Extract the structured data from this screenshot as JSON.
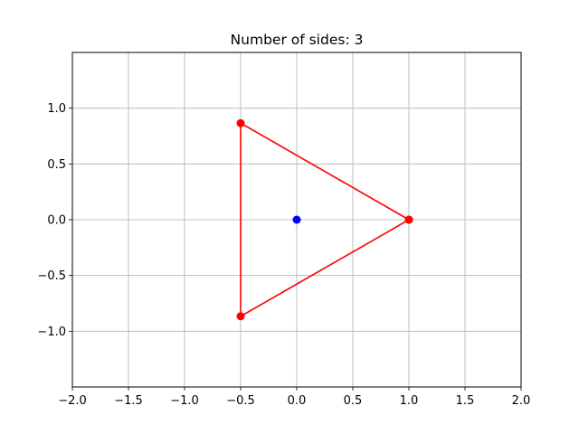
{
  "chart_data": {
    "type": "line",
    "title": "Number of sides: 3",
    "xlabel": "",
    "ylabel": "",
    "xlim": [
      -2.0,
      2.0
    ],
    "ylim": [
      -1.5,
      1.5
    ],
    "grid": true,
    "x_ticks": [
      -2.0,
      -1.5,
      -1.0,
      -0.5,
      0.0,
      0.5,
      1.0,
      1.5,
      2.0
    ],
    "x_tick_labels": [
      "−2.0",
      "−1.5",
      "−1.0",
      "−0.5",
      "0.0",
      "0.5",
      "1.0",
      "1.5",
      "2.0"
    ],
    "y_ticks": [
      1.0,
      0.5,
      0.0,
      -0.5,
      -1.0
    ],
    "y_tick_labels": [
      "1.0",
      "0.5",
      "0.0",
      "−0.5",
      "−1.0"
    ],
    "series": [
      {
        "kind": "polygon",
        "color": "#ff0000",
        "marker": "circle",
        "x": [
          1.0,
          -0.5,
          -0.5,
          1.0
        ],
        "y": [
          0.0,
          0.866,
          -0.866,
          0.0
        ]
      },
      {
        "kind": "point",
        "color": "#0000ff",
        "marker": "circle",
        "x": [
          0.0
        ],
        "y": [
          0.0
        ]
      }
    ]
  }
}
